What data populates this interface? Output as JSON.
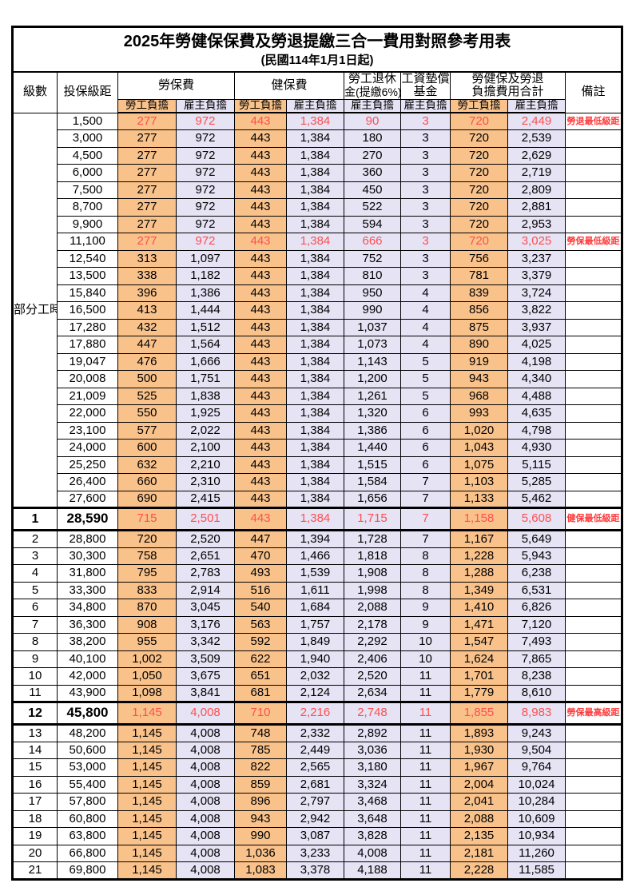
{
  "title": "2025年勞健保保費及勞退提繳三合一費用對照參考用表",
  "subtitle": "(民國114年1月1日起)",
  "columns": {
    "level": "級數",
    "bracket": "投保級距",
    "labor_insurance": "勞保費",
    "health_insurance": "健保費",
    "pension_line1": "勞工退休",
    "pension_line2": "金(提繳6%)",
    "wage_fund_line1": "工資墊償",
    "wage_fund_line2": "基金",
    "total_line1": "勞健保及勞退",
    "total_line2": "負擔費用合計",
    "employee": "勞工負擔",
    "employer": "雇主負擔",
    "remark": "備註"
  },
  "part_time_label": "部分工時",
  "part_time_rowspan": 23,
  "colors": {
    "employee_col_bg": "#F9C28B",
    "employer_col_bg": "#E5E3F4",
    "highlight_value_red": "#FF4F4F",
    "remark_red": "#FF3B3B",
    "border_black": "#000000"
  },
  "rows": [
    {
      "level": "",
      "bracket": "1,500",
      "v": [
        "277",
        "972",
        "443",
        "1,384",
        "90",
        "3",
        "720",
        "2,449"
      ],
      "remark": "勞退最低級距",
      "red": true,
      "em": false
    },
    {
      "level": "",
      "bracket": "3,000",
      "v": [
        "277",
        "972",
        "443",
        "1,384",
        "180",
        "3",
        "720",
        "2,539"
      ],
      "remark": "",
      "red": false,
      "em": false
    },
    {
      "level": "",
      "bracket": "4,500",
      "v": [
        "277",
        "972",
        "443",
        "1,384",
        "270",
        "3",
        "720",
        "2,629"
      ],
      "remark": "",
      "red": false,
      "em": false
    },
    {
      "level": "",
      "bracket": "6,000",
      "v": [
        "277",
        "972",
        "443",
        "1,384",
        "360",
        "3",
        "720",
        "2,719"
      ],
      "remark": "",
      "red": false,
      "em": false
    },
    {
      "level": "",
      "bracket": "7,500",
      "v": [
        "277",
        "972",
        "443",
        "1,384",
        "450",
        "3",
        "720",
        "2,809"
      ],
      "remark": "",
      "red": false,
      "em": false
    },
    {
      "level": "",
      "bracket": "8,700",
      "v": [
        "277",
        "972",
        "443",
        "1,384",
        "522",
        "3",
        "720",
        "2,881"
      ],
      "remark": "",
      "red": false,
      "em": false
    },
    {
      "level": "",
      "bracket": "9,900",
      "v": [
        "277",
        "972",
        "443",
        "1,384",
        "594",
        "3",
        "720",
        "2,953"
      ],
      "remark": "",
      "red": false,
      "em": false
    },
    {
      "level": "",
      "bracket": "11,100",
      "v": [
        "277",
        "972",
        "443",
        "1,384",
        "666",
        "3",
        "720",
        "3,025"
      ],
      "remark": "勞保最低級距",
      "red": true,
      "em": false
    },
    {
      "level": "",
      "bracket": "12,540",
      "v": [
        "313",
        "1,097",
        "443",
        "1,384",
        "752",
        "3",
        "756",
        "3,237"
      ],
      "remark": "",
      "red": false,
      "em": false
    },
    {
      "level": "",
      "bracket": "13,500",
      "v": [
        "338",
        "1,182",
        "443",
        "1,384",
        "810",
        "3",
        "781",
        "3,379"
      ],
      "remark": "",
      "red": false,
      "em": false
    },
    {
      "level": "",
      "bracket": "15,840",
      "v": [
        "396",
        "1,386",
        "443",
        "1,384",
        "950",
        "4",
        "839",
        "3,724"
      ],
      "remark": "",
      "red": false,
      "em": false
    },
    {
      "level": "",
      "bracket": "16,500",
      "v": [
        "413",
        "1,444",
        "443",
        "1,384",
        "990",
        "4",
        "856",
        "3,822"
      ],
      "remark": "",
      "red": false,
      "em": false
    },
    {
      "level": "",
      "bracket": "17,280",
      "v": [
        "432",
        "1,512",
        "443",
        "1,384",
        "1,037",
        "4",
        "875",
        "3,937"
      ],
      "remark": "",
      "red": false,
      "em": false
    },
    {
      "level": "",
      "bracket": "17,880",
      "v": [
        "447",
        "1,564",
        "443",
        "1,384",
        "1,073",
        "4",
        "890",
        "4,025"
      ],
      "remark": "",
      "red": false,
      "em": false
    },
    {
      "level": "",
      "bracket": "19,047",
      "v": [
        "476",
        "1,666",
        "443",
        "1,384",
        "1,143",
        "5",
        "919",
        "4,198"
      ],
      "remark": "",
      "red": false,
      "em": false
    },
    {
      "level": "",
      "bracket": "20,008",
      "v": [
        "500",
        "1,751",
        "443",
        "1,384",
        "1,200",
        "5",
        "943",
        "4,340"
      ],
      "remark": "",
      "red": false,
      "em": false
    },
    {
      "level": "",
      "bracket": "21,009",
      "v": [
        "525",
        "1,838",
        "443",
        "1,384",
        "1,261",
        "5",
        "968",
        "4,488"
      ],
      "remark": "",
      "red": false,
      "em": false
    },
    {
      "level": "",
      "bracket": "22,000",
      "v": [
        "550",
        "1,925",
        "443",
        "1,384",
        "1,320",
        "6",
        "993",
        "4,635"
      ],
      "remark": "",
      "red": false,
      "em": false
    },
    {
      "level": "",
      "bracket": "23,100",
      "v": [
        "577",
        "2,022",
        "443",
        "1,384",
        "1,386",
        "6",
        "1,020",
        "4,798"
      ],
      "remark": "",
      "red": false,
      "em": false
    },
    {
      "level": "",
      "bracket": "24,000",
      "v": [
        "600",
        "2,100",
        "443",
        "1,384",
        "1,440",
        "6",
        "1,043",
        "4,930"
      ],
      "remark": "",
      "red": false,
      "em": false
    },
    {
      "level": "",
      "bracket": "25,250",
      "v": [
        "632",
        "2,210",
        "443",
        "1,384",
        "1,515",
        "6",
        "1,075",
        "5,115"
      ],
      "remark": "",
      "red": false,
      "em": false
    },
    {
      "level": "",
      "bracket": "26,400",
      "v": [
        "660",
        "2,310",
        "443",
        "1,384",
        "1,584",
        "7",
        "1,103",
        "5,285"
      ],
      "remark": "",
      "red": false,
      "em": false
    },
    {
      "level": "",
      "bracket": "27,600",
      "v": [
        "690",
        "2,415",
        "443",
        "1,384",
        "1,656",
        "7",
        "1,133",
        "5,462"
      ],
      "remark": "",
      "red": false,
      "em": false
    },
    {
      "level": "1",
      "bracket": "28,590",
      "v": [
        "715",
        "2,501",
        "443",
        "1,384",
        "1,715",
        "7",
        "1,158",
        "5,608"
      ],
      "remark": "健保最低級距",
      "red": true,
      "em": true
    },
    {
      "level": "2",
      "bracket": "28,800",
      "v": [
        "720",
        "2,520",
        "447",
        "1,394",
        "1,728",
        "7",
        "1,167",
        "5,649"
      ],
      "remark": "",
      "red": false,
      "em": false
    },
    {
      "level": "3",
      "bracket": "30,300",
      "v": [
        "758",
        "2,651",
        "470",
        "1,466",
        "1,818",
        "8",
        "1,228",
        "5,943"
      ],
      "remark": "",
      "red": false,
      "em": false
    },
    {
      "level": "4",
      "bracket": "31,800",
      "v": [
        "795",
        "2,783",
        "493",
        "1,539",
        "1,908",
        "8",
        "1,288",
        "6,238"
      ],
      "remark": "",
      "red": false,
      "em": false
    },
    {
      "level": "5",
      "bracket": "33,300",
      "v": [
        "833",
        "2,914",
        "516",
        "1,611",
        "1,998",
        "8",
        "1,349",
        "6,531"
      ],
      "remark": "",
      "red": false,
      "em": false
    },
    {
      "level": "6",
      "bracket": "34,800",
      "v": [
        "870",
        "3,045",
        "540",
        "1,684",
        "2,088",
        "9",
        "1,410",
        "6,826"
      ],
      "remark": "",
      "red": false,
      "em": false
    },
    {
      "level": "7",
      "bracket": "36,300",
      "v": [
        "908",
        "3,176",
        "563",
        "1,757",
        "2,178",
        "9",
        "1,471",
        "7,120"
      ],
      "remark": "",
      "red": false,
      "em": false
    },
    {
      "level": "8",
      "bracket": "38,200",
      "v": [
        "955",
        "3,342",
        "592",
        "1,849",
        "2,292",
        "10",
        "1,547",
        "7,493"
      ],
      "remark": "",
      "red": false,
      "em": false
    },
    {
      "level": "9",
      "bracket": "40,100",
      "v": [
        "1,002",
        "3,509",
        "622",
        "1,940",
        "2,406",
        "10",
        "1,624",
        "7,865"
      ],
      "remark": "",
      "red": false,
      "em": false
    },
    {
      "level": "10",
      "bracket": "42,000",
      "v": [
        "1,050",
        "3,675",
        "651",
        "2,032",
        "2,520",
        "11",
        "1,701",
        "8,238"
      ],
      "remark": "",
      "red": false,
      "em": false
    },
    {
      "level": "11",
      "bracket": "43,900",
      "v": [
        "1,098",
        "3,841",
        "681",
        "2,124",
        "2,634",
        "11",
        "1,779",
        "8,610"
      ],
      "remark": "",
      "red": false,
      "em": false
    },
    {
      "level": "12",
      "bracket": "45,800",
      "v": [
        "1,145",
        "4,008",
        "710",
        "2,216",
        "2,748",
        "11",
        "1,855",
        "8,983"
      ],
      "remark": "勞保最高級距",
      "red": true,
      "em": true
    },
    {
      "level": "13",
      "bracket": "48,200",
      "v": [
        "1,145",
        "4,008",
        "748",
        "2,332",
        "2,892",
        "11",
        "1,893",
        "9,243"
      ],
      "remark": "",
      "red": false,
      "em": false
    },
    {
      "level": "14",
      "bracket": "50,600",
      "v": [
        "1,145",
        "4,008",
        "785",
        "2,449",
        "3,036",
        "11",
        "1,930",
        "9,504"
      ],
      "remark": "",
      "red": false,
      "em": false
    },
    {
      "level": "15",
      "bracket": "53,000",
      "v": [
        "1,145",
        "4,008",
        "822",
        "2,565",
        "3,180",
        "11",
        "1,967",
        "9,764"
      ],
      "remark": "",
      "red": false,
      "em": false
    },
    {
      "level": "16",
      "bracket": "55,400",
      "v": [
        "1,145",
        "4,008",
        "859",
        "2,681",
        "3,324",
        "11",
        "2,004",
        "10,024"
      ],
      "remark": "",
      "red": false,
      "em": false
    },
    {
      "level": "17",
      "bracket": "57,800",
      "v": [
        "1,145",
        "4,008",
        "896",
        "2,797",
        "3,468",
        "11",
        "2,041",
        "10,284"
      ],
      "remark": "",
      "red": false,
      "em": false
    },
    {
      "level": "18",
      "bracket": "60,800",
      "v": [
        "1,145",
        "4,008",
        "943",
        "2,942",
        "3,648",
        "11",
        "2,088",
        "10,609"
      ],
      "remark": "",
      "red": false,
      "em": false
    },
    {
      "level": "19",
      "bracket": "63,800",
      "v": [
        "1,145",
        "4,008",
        "990",
        "3,087",
        "3,828",
        "11",
        "2,135",
        "10,934"
      ],
      "remark": "",
      "red": false,
      "em": false
    },
    {
      "level": "20",
      "bracket": "66,800",
      "v": [
        "1,145",
        "4,008",
        "1,036",
        "3,233",
        "4,008",
        "11",
        "2,181",
        "11,260"
      ],
      "remark": "",
      "red": false,
      "em": false
    },
    {
      "level": "21",
      "bracket": "69,800",
      "v": [
        "1,145",
        "4,008",
        "1,083",
        "3,378",
        "4,188",
        "11",
        "2,228",
        "11,585"
      ],
      "remark": "",
      "red": false,
      "em": false
    }
  ]
}
